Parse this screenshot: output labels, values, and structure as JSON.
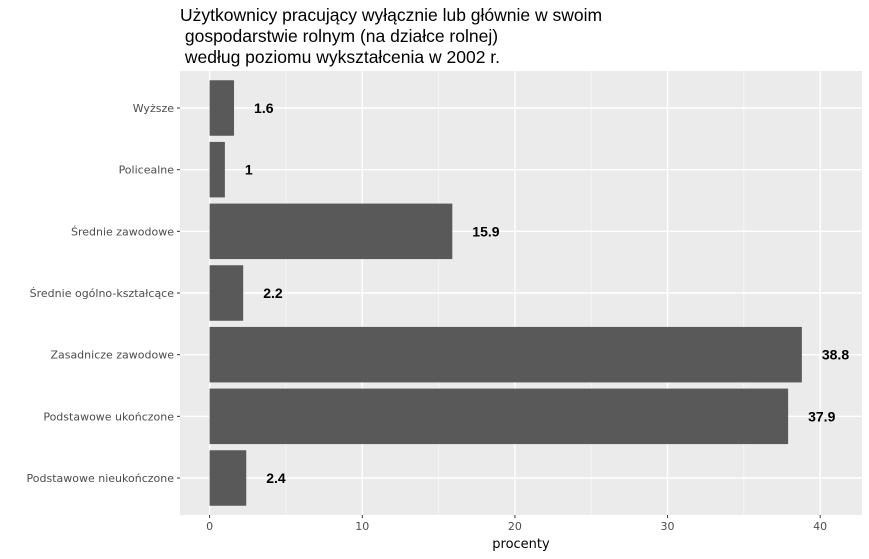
{
  "chart_data": {
    "type": "bar",
    "orientation": "horizontal",
    "title_lines": [
      "Użytkownicy pracujący wyłącznie lub głównie w swoim",
      " gospodarstwie rolnym (na działce rolnej)",
      " według poziomu wykształcenia w 2002 r."
    ],
    "xlabel": "procenty",
    "ylabel": "",
    "categories": [
      "Wyższe",
      "Policealne",
      "Średnie zawodowe",
      "Średnie ogólno-kształcące",
      "Zasadnicze zawodowe",
      "Podstawowe ukończone",
      "Podstawowe nieukończone"
    ],
    "values": [
      1.6,
      1,
      15.9,
      2.2,
      38.8,
      37.9,
      2.4
    ],
    "value_labels": [
      "1.6",
      "1",
      "15.9",
      "2.2",
      "38.8",
      "37.9",
      "2.4"
    ],
    "x_ticks": [
      0,
      10,
      20,
      30,
      40
    ],
    "x_tick_labels": [
      "0",
      "10",
      "20",
      "30",
      "40"
    ],
    "xlim": [
      -1.94,
      42.74
    ],
    "grid": true,
    "legend": "none",
    "colors": {
      "bar": "#595959",
      "panel": "#ebebeb",
      "grid_major": "#ffffff",
      "grid_minor": "#f5f5f5",
      "tick": "#333333"
    }
  }
}
